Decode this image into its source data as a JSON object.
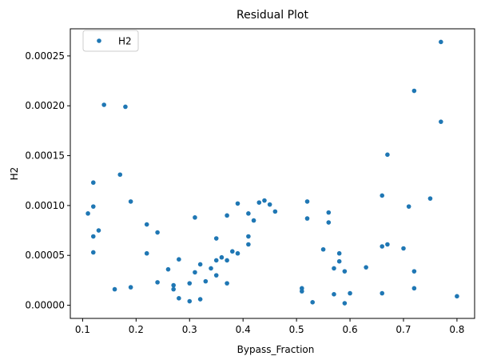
{
  "chart_data": {
    "type": "scatter",
    "title": "Residual Plot",
    "xlabel": "Bypass_Fraction",
    "ylabel": "H2",
    "xlim": [
      0.077,
      0.833
    ],
    "ylim": [
      -1.32e-05,
      0.0002772
    ],
    "xticks": [
      0.1,
      0.2,
      0.3,
      0.4,
      0.5,
      0.6,
      0.7,
      0.8
    ],
    "xtick_labels": [
      "0.1",
      "0.2",
      "0.3",
      "0.4",
      "0.5",
      "0.6",
      "0.7",
      "0.8"
    ],
    "yticks": [
      0,
      5e-05,
      0.0001,
      0.00015,
      0.0002,
      0.00025
    ],
    "ytick_labels": [
      "0.00000",
      "0.00005",
      "0.00010",
      "0.00015",
      "0.00020",
      "0.00025"
    ],
    "grid": false,
    "legend_position": "top-left",
    "colors": {
      "series": "#1f77b4",
      "axis": "#000000",
      "background": "#ffffff"
    },
    "series": [
      {
        "name": "H2",
        "x": [
          0.11,
          0.12,
          0.12,
          0.12,
          0.12,
          0.13,
          0.14,
          0.16,
          0.17,
          0.18,
          0.19,
          0.19,
          0.22,
          0.22,
          0.24,
          0.24,
          0.26,
          0.27,
          0.27,
          0.28,
          0.28,
          0.3,
          0.3,
          0.31,
          0.31,
          0.32,
          0.32,
          0.33,
          0.34,
          0.35,
          0.35,
          0.35,
          0.36,
          0.37,
          0.37,
          0.37,
          0.38,
          0.39,
          0.39,
          0.41,
          0.41,
          0.41,
          0.42,
          0.43,
          0.44,
          0.45,
          0.46,
          0.51,
          0.51,
          0.52,
          0.52,
          0.53,
          0.55,
          0.56,
          0.56,
          0.57,
          0.57,
          0.58,
          0.58,
          0.59,
          0.59,
          0.6,
          0.63,
          0.66,
          0.66,
          0.66,
          0.67,
          0.67,
          0.7,
          0.71,
          0.72,
          0.72,
          0.72,
          0.75,
          0.77,
          0.77,
          0.8
        ],
        "y": [
          9.2e-05,
          0.000123,
          9.9e-05,
          6.9e-05,
          5.3e-05,
          7.5e-05,
          0.000201,
          1.6e-05,
          0.000131,
          0.000199,
          0.000104,
          1.8e-05,
          8.1e-05,
          5.2e-05,
          7.3e-05,
          2.3e-05,
          3.6e-05,
          2e-05,
          1.6e-05,
          4.6e-05,
          7e-06,
          2.2e-05,
          4e-06,
          3.3e-05,
          8.8e-05,
          4.1e-05,
          6e-06,
          2.4e-05,
          3.7e-05,
          6.7e-05,
          4.5e-05,
          3e-05,
          4.8e-05,
          9e-05,
          4.5e-05,
          2.2e-05,
          5.4e-05,
          5.2e-05,
          0.000102,
          9.2e-05,
          6.9e-05,
          6.1e-05,
          8.5e-05,
          0.000103,
          0.000105,
          0.000101,
          9.4e-05,
          1.7e-05,
          1.4e-05,
          0.000104,
          8.7e-05,
          3e-06,
          5.6e-05,
          9.3e-05,
          8.3e-05,
          3.7e-05,
          1.1e-05,
          5.2e-05,
          4.4e-05,
          3.4e-05,
          2e-06,
          1.2e-05,
          3.8e-05,
          0.00011,
          5.9e-05,
          1.2e-05,
          0.000151,
          6.1e-05,
          5.7e-05,
          9.9e-05,
          0.000215,
          3.4e-05,
          1.7e-05,
          0.000107,
          0.000264,
          0.000184,
          9e-06
        ]
      }
    ]
  }
}
